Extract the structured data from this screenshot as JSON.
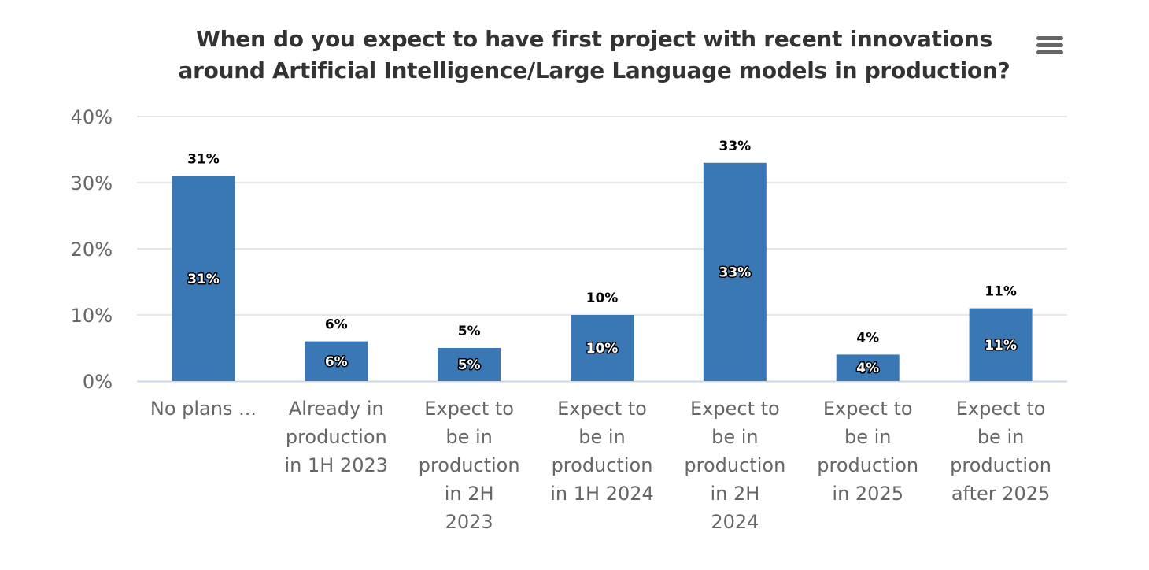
{
  "chart_data": {
    "type": "bar",
    "title": "When do you expect to have first project with recent innovations around Artificial Intelligence/Large Language models in production?",
    "xlabel": "",
    "ylabel": "",
    "ylim": [
      0,
      40
    ],
    "yticks": [
      0,
      10,
      20,
      30,
      40
    ],
    "ytick_labels": [
      "0%",
      "10%",
      "20%",
      "30%",
      "40%"
    ],
    "grid": true,
    "legend": "none",
    "categories": [
      "No plans ...",
      "Already in production in 1H 2023",
      "Expect to be in production in 2H 2023",
      "Expect to be in production in 1H 2024",
      "Expect to be in production in 2H 2024",
      "Expect to be in production in 2025",
      "Expect to be in production after 2025"
    ],
    "category_lines": [
      [
        "No plans ..."
      ],
      [
        "Already in",
        "production",
        "in 1H 2023"
      ],
      [
        "Expect to",
        "be in",
        "production",
        "in 2H",
        "2023"
      ],
      [
        "Expect to",
        "be in",
        "production",
        "in 1H 2024"
      ],
      [
        "Expect to",
        "be in",
        "production",
        "in 2H",
        "2024"
      ],
      [
        "Expect to",
        "be in",
        "production",
        "in 2025"
      ],
      [
        "Expect to",
        "be in",
        "production",
        "after 2025"
      ]
    ],
    "series": [
      {
        "name": "Responses",
        "values": [
          31,
          6,
          5,
          10,
          33,
          4,
          11
        ],
        "color": "#3a78b5"
      }
    ],
    "data_labels": [
      "31%",
      "6%",
      "5%",
      "10%",
      "33%",
      "4%",
      "11%"
    ]
  },
  "menu": {
    "icon": "hamburger-menu-icon"
  }
}
